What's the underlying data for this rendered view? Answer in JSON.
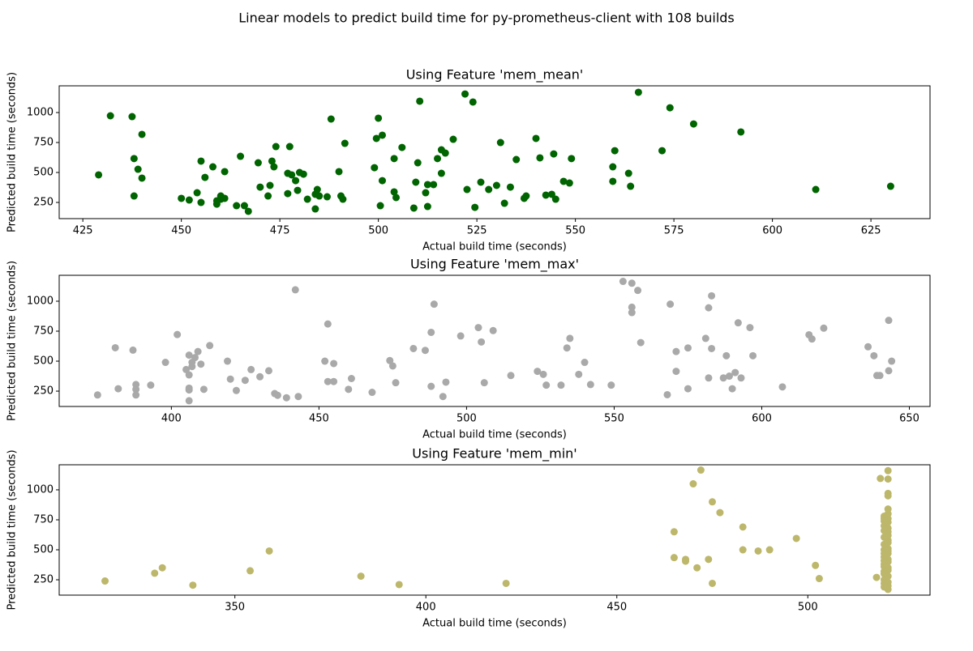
{
  "title": "Linear models to predict build time for py-prometheus-client with 108 builds",
  "chart_data": [
    {
      "type": "scatter",
      "title": "Using Feature 'mem_mean'",
      "xlabel": "Actual build time (seconds)",
      "ylabel": "Predicted build time (seconds)",
      "color": "#006400",
      "xlim": [
        419,
        640
      ],
      "ylim": [
        115,
        1223
      ],
      "xticks": [
        425,
        450,
        475,
        500,
        525,
        550,
        575,
        600,
        625
      ],
      "yticks": [
        250,
        500,
        750,
        1000
      ],
      "x": [
        429,
        432,
        437.5,
        438,
        439,
        438,
        440,
        440,
        450,
        452,
        454,
        455,
        455,
        456,
        458,
        459,
        459,
        460,
        460,
        461,
        461,
        464,
        465,
        466,
        467,
        469.5,
        470,
        472,
        472.5,
        473,
        473.5,
        474,
        477,
        477,
        477.5,
        478,
        479,
        479.5,
        480,
        481,
        482,
        484,
        484.5,
        484,
        485,
        487,
        488,
        490,
        490.5,
        491,
        491.5,
        499,
        499.5,
        500,
        500.5,
        501,
        501,
        504,
        504,
        504.5,
        506,
        509,
        509.5,
        510,
        510.5,
        512,
        512.5,
        512.5,
        514,
        515,
        516,
        516,
        517,
        519,
        522,
        522.5,
        524,
        524.5,
        526,
        528,
        530,
        531,
        532,
        533.5,
        535,
        537,
        537.5,
        540,
        541,
        542.5,
        544,
        544.5,
        545,
        547,
        548.5,
        549,
        559.5,
        559.5,
        560,
        563.5,
        564,
        566,
        572,
        574,
        580,
        592,
        611,
        630
      ],
      "y": [
        480,
        973,
        966,
        616,
        527,
        304,
        818,
        453,
        284,
        270,
        331,
        250,
        595,
        459,
        547,
        236,
        264,
        304,
        277,
        284,
        507,
        223,
        635,
        223,
        176,
        581,
        378,
        304,
        392,
        595,
        547,
        716,
        493,
        324,
        716,
        480,
        432,
        351,
        500,
        486,
        277,
        318,
        358,
        196,
        304,
        297,
        946,
        507,
        304,
        277,
        743,
        540,
        784,
        953,
        223,
        432,
        811,
        616,
        338,
        291,
        709,
        203,
        419,
        581,
        1095,
        331,
        399,
        216,
        399,
        616,
        493,
        689,
        662,
        777,
        1155,
        358,
        1088,
        209,
        419,
        358,
        392,
        750,
        243,
        378,
        608,
        284,
        304,
        784,
        622,
        311,
        318,
        655,
        277,
        426,
        412,
        616,
        426,
        547,
        682,
        493,
        385,
        1169,
        682,
        1040,
        905,
        838,
        358,
        385
      ]
    },
    {
      "type": "scatter",
      "title": "Using Feature 'mem_max'",
      "xlabel": "Actual build time (seconds)",
      "ylabel": "Predicted build time (seconds)",
      "color": "#a9a9a9",
      "xlim": [
        362,
        657
      ],
      "ylim": [
        122,
        1216
      ],
      "xticks": [
        400,
        450,
        500,
        550,
        600,
        650
      ],
      "yticks": [
        250,
        500,
        750,
        1000
      ],
      "x": [
        375,
        381,
        382,
        387,
        388,
        388,
        388,
        393,
        398,
        402,
        405,
        406,
        406,
        406,
        406,
        406,
        407,
        407,
        408,
        409,
        410,
        411,
        413,
        419,
        420,
        422,
        425,
        427,
        430,
        433,
        435,
        436,
        439,
        442,
        443,
        452,
        453,
        453,
        455,
        455,
        460,
        461,
        468,
        474,
        475,
        476,
        482,
        486,
        488,
        488,
        489,
        492,
        493,
        498,
        504,
        505,
        506,
        509,
        515,
        524,
        526,
        527,
        532,
        534,
        535,
        538,
        540,
        542,
        549,
        553,
        556,
        556,
        556,
        558,
        559,
        569,
        571,
        571,
        575,
        575,
        568,
        581,
        582,
        582,
        583,
        583,
        587,
        588,
        589,
        590,
        591,
        592,
        593,
        596,
        597,
        607,
        616,
        617,
        621,
        636,
        638,
        639,
        640,
        643,
        643,
        644
      ],
      "y": [
        218,
        612,
        270,
        592,
        265,
        218,
        305,
        300,
        490,
        722,
        430,
        550,
        275,
        385,
        260,
        170,
        490,
        455,
        530,
        580,
        475,
        265,
        630,
        500,
        350,
        255,
        340,
        430,
        370,
        420,
        230,
        215,
        195,
        1095,
        205,
        500,
        330,
        810,
        480,
        330,
        265,
        355,
        240,
        505,
        460,
        320,
        605,
        590,
        740,
        290,
        975,
        205,
        325,
        710,
        780,
        660,
        320,
        755,
        380,
        415,
        390,
        300,
        300,
        610,
        690,
        390,
        490,
        305,
        300,
        1165,
        1150,
        950,
        905,
        1090,
        655,
        975,
        580,
        415,
        610,
        270,
        220,
        690,
        945,
        360,
        1045,
        605,
        360,
        545,
        375,
        270,
        405,
        820,
        360,
        780,
        545,
        285,
        720,
        685,
        775,
        620,
        545,
        380,
        380,
        840,
        420,
        500
      ]
    },
    {
      "type": "scatter",
      "title": "Using Feature 'mem_min'",
      "xlabel": "Actual build time (seconds)",
      "ylabel": "Predicted build time (seconds)",
      "color": "#bdb76b",
      "xlim": [
        304,
        532
      ],
      "ylim": [
        122,
        1209
      ],
      "xticks": [
        350,
        400,
        450,
        500
      ],
      "yticks": [
        250,
        500,
        750,
        1000
      ],
      "x": [
        316,
        329,
        331,
        339,
        354,
        359,
        383,
        393,
        421,
        465,
        465,
        468,
        468,
        470,
        471,
        472,
        474,
        475,
        475,
        477,
        483,
        483,
        487,
        490,
        497,
        502,
        503,
        518,
        519,
        520,
        520,
        520,
        520,
        520,
        520,
        520,
        520,
        520,
        521,
        521,
        521,
        521,
        521,
        521,
        521,
        521,
        521,
        521,
        521,
        521,
        521,
        521,
        521,
        521,
        521,
        521,
        521,
        521,
        521,
        521,
        521,
        521,
        520,
        520,
        520,
        520,
        520,
        520,
        520,
        520,
        520
      ],
      "y": [
        240,
        305,
        350,
        205,
        325,
        490,
        280,
        210,
        220,
        650,
        435,
        405,
        420,
        1050,
        350,
        1165,
        420,
        900,
        220,
        810,
        690,
        500,
        490,
        500,
        595,
        370,
        260,
        270,
        1095,
        780,
        760,
        700,
        605,
        545,
        440,
        380,
        300,
        250,
        1160,
        970,
        950,
        1090,
        840,
        800,
        730,
        680,
        620,
        580,
        510,
        470,
        420,
        350,
        330,
        280,
        230,
        200,
        170,
        400,
        490,
        560,
        650,
        760,
        190,
        220,
        320,
        360,
        410,
        470,
        500,
        660,
        740
      ]
    }
  ]
}
